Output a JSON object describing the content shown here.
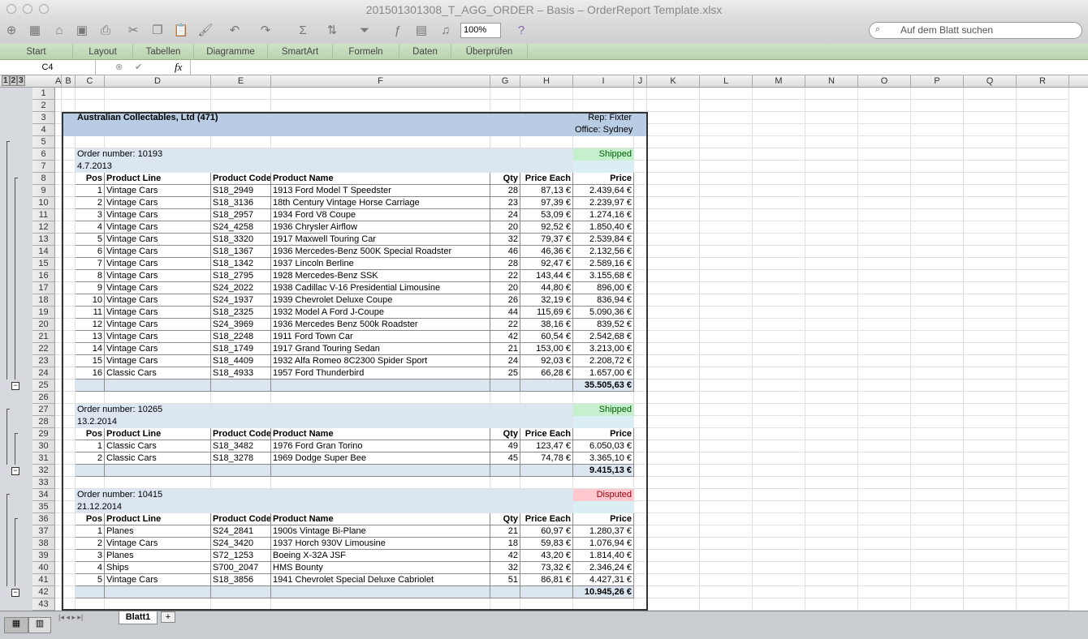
{
  "window": {
    "title": "201501301308_T_AGG_ORDER – Basis – OrderReport Template.xlsx"
  },
  "toolbar": {
    "zoom": "100%",
    "search_placeholder": "Auf dem Blatt suchen"
  },
  "ribbon": {
    "tabs": [
      "Start",
      "Layout",
      "Tabellen",
      "Diagramme",
      "SmartArt",
      "Formeln",
      "Daten",
      "Überprüfen"
    ]
  },
  "formula_bar": {
    "cell_ref": "C4",
    "fx": "fx",
    "value": ""
  },
  "grid": {
    "columns": [
      "A",
      "B",
      "C",
      "D",
      "E",
      "F",
      "G",
      "H",
      "I",
      "J",
      "K",
      "L",
      "M",
      "N",
      "O",
      "P",
      "Q",
      "R"
    ],
    "outline_levels": [
      "1",
      "2",
      "3"
    ],
    "row_count": 43
  },
  "report": {
    "customer": "Australian Collectables, Ltd (471)",
    "rep": "Rep: Fixter",
    "office": "Office: Sydney",
    "headers": [
      "Pos",
      "Product Line",
      "Product Code",
      "Product Name",
      "Qty",
      "Price Each",
      "Price"
    ],
    "colors": {
      "header": "#b8cce4",
      "order": "#dce6f1",
      "shipped_bg": "#c6efce",
      "shipped_fg": "#006100",
      "disputed_bg": "#ffc7ce",
      "disputed_fg": "#9c0006"
    },
    "orders": [
      {
        "number": "Order number: 10193",
        "date": "4.7.2013",
        "status": "Shipped",
        "total": "35.505,63 €",
        "items": [
          [
            "1",
            "Vintage Cars",
            "S18_2949",
            "1913 Ford Model T Speedster",
            "28",
            "87,13 €",
            "2.439,64 €"
          ],
          [
            "2",
            "Vintage Cars",
            "S18_3136",
            "18th Century Vintage Horse Carriage",
            "23",
            "97,39 €",
            "2.239,97 €"
          ],
          [
            "3",
            "Vintage Cars",
            "S18_2957",
            "1934 Ford V8 Coupe",
            "24",
            "53,09 €",
            "1.274,16 €"
          ],
          [
            "4",
            "Vintage Cars",
            "S24_4258",
            "1936 Chrysler Airflow",
            "20",
            "92,52 €",
            "1.850,40 €"
          ],
          [
            "5",
            "Vintage Cars",
            "S18_3320",
            "1917 Maxwell Touring Car",
            "32",
            "79,37 €",
            "2.539,84 €"
          ],
          [
            "6",
            "Vintage Cars",
            "S18_1367",
            "1936 Mercedes-Benz 500K Special Roadster",
            "46",
            "46,36 €",
            "2.132,56 €"
          ],
          [
            "7",
            "Vintage Cars",
            "S18_1342",
            "1937 Lincoln Berline",
            "28",
            "92,47 €",
            "2.589,16 €"
          ],
          [
            "8",
            "Vintage Cars",
            "S18_2795",
            "1928 Mercedes-Benz SSK",
            "22",
            "143,44 €",
            "3.155,68 €"
          ],
          [
            "9",
            "Vintage Cars",
            "S24_2022",
            "1938 Cadillac V-16 Presidential Limousine",
            "20",
            "44,80 €",
            "896,00 €"
          ],
          [
            "10",
            "Vintage Cars",
            "S24_1937",
            "1939 Chevrolet Deluxe Coupe",
            "26",
            "32,19 €",
            "836,94 €"
          ],
          [
            "11",
            "Vintage Cars",
            "S18_2325",
            "1932 Model A Ford J-Coupe",
            "44",
            "115,69 €",
            "5.090,36 €"
          ],
          [
            "12",
            "Vintage Cars",
            "S24_3969",
            "1936 Mercedes Benz 500k Roadster",
            "22",
            "38,16 €",
            "839,52 €"
          ],
          [
            "13",
            "Vintage Cars",
            "S18_2248",
            "1911 Ford Town Car",
            "42",
            "60,54 €",
            "2.542,68 €"
          ],
          [
            "14",
            "Vintage Cars",
            "S18_1749",
            "1917 Grand Touring Sedan",
            "21",
            "153,00 €",
            "3.213,00 €"
          ],
          [
            "15",
            "Vintage Cars",
            "S18_4409",
            "1932 Alfa Romeo 8C2300 Spider Sport",
            "24",
            "92,03 €",
            "2.208,72 €"
          ],
          [
            "16",
            "Classic Cars",
            "S18_4933",
            "1957 Ford Thunderbird",
            "25",
            "66,28 €",
            "1.657,00 €"
          ]
        ]
      },
      {
        "number": "Order number: 10265",
        "date": "13.2.2014",
        "status": "Shipped",
        "total": "9.415,13 €",
        "items": [
          [
            "1",
            "Classic Cars",
            "S18_3482",
            "1976 Ford Gran Torino",
            "49",
            "123,47 €",
            "6.050,03 €"
          ],
          [
            "2",
            "Classic Cars",
            "S18_3278",
            "1969 Dodge Super Bee",
            "45",
            "74,78 €",
            "3.365,10 €"
          ]
        ]
      },
      {
        "number": "Order number: 10415",
        "date": "21.12.2014",
        "status": "Disputed",
        "total": "10.945,26 €",
        "items": [
          [
            "1",
            "Planes",
            "S24_2841",
            "1900s Vintage Bi-Plane",
            "21",
            "60,97 €",
            "1.280,37 €"
          ],
          [
            "2",
            "Vintage Cars",
            "S24_3420",
            "1937 Horch 930V Limousine",
            "18",
            "59,83 €",
            "1.076,94 €"
          ],
          [
            "3",
            "Planes",
            "S72_1253",
            "Boeing X-32A JSF",
            "42",
            "43,20 €",
            "1.814,40 €"
          ],
          [
            "4",
            "Ships",
            "S700_2047",
            "HMS Bounty",
            "32",
            "73,32 €",
            "2.346,24 €"
          ],
          [
            "5",
            "Vintage Cars",
            "S18_3856",
            "1941 Chevrolet Special Deluxe Cabriolet",
            "51",
            "86,81 €",
            "4.427,31 €"
          ]
        ]
      }
    ]
  },
  "sheets": {
    "active": "Blatt1",
    "add": "+"
  }
}
